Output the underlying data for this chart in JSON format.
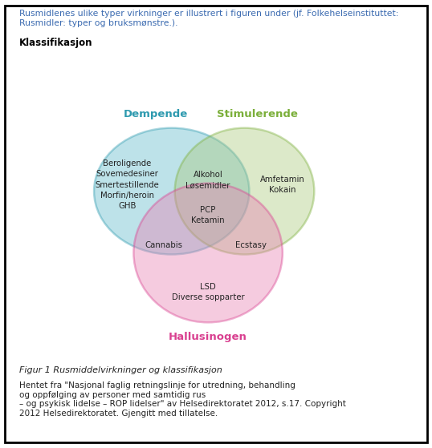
{
  "header_text": "Rusmidlenes ulike typer virkninger er illustrert i figuren under (jf. Folkehelseinstituttet:\nRusmidler: typer og bruksmønstre.).",
  "subheader_text": "Klassifikasjon",
  "label_dempende": "Dempende",
  "label_stimulerende": "Stimulerende",
  "label_hallusinogen": "Hallusinogen",
  "color_dempende": "#5BB8C8",
  "color_stimulerende": "#A8C87A",
  "color_hallusinogen": "#E87DB0",
  "color_dempende_label": "#2E9AAF",
  "color_stimulerende_label": "#7BAF3A",
  "color_hallusinogen_label": "#D94090",
  "color_border_dempende": "#2E9AAF",
  "color_border_stimulerende": "#7BAF3A",
  "color_border_hallusinogen": "#D94090",
  "alpha_circles": 0.4,
  "text_only_dempende": "Beroligende\nSovemedesiner\nSmertestillende\nMorfin/heroin\nGHB",
  "text_overlap_dempende_stimulerende": "Alkohol\nLøsemidler",
  "text_only_stimulerende": "Amfetamin\nKokain",
  "text_triple_overlap": "PCP\nKetamin",
  "text_overlap_dempende_hallusinogen": "Cannabis",
  "text_overlap_stimulerende_hallusinogen": "Ecstasy",
  "text_only_hallusinogen": "LSD\nDiverse sopparter",
  "fig_caption": "Figur 1 Rusmiddelvirkninger og klassifikasjon",
  "source_text": "Hentet fra \"Nasjonal faglig retningslinje for utredning, behandling\nog oppfølging av personer med samtidig rus\n– og psykisk lidelse – ROP lidelser\" av Helsedirektoratet 2012, s.17. Copyright\n2012 Helsedirektoratet. Gjengitt med tillatelse.",
  "figsize": [
    5.38,
    5.59
  ],
  "dpi": 100
}
